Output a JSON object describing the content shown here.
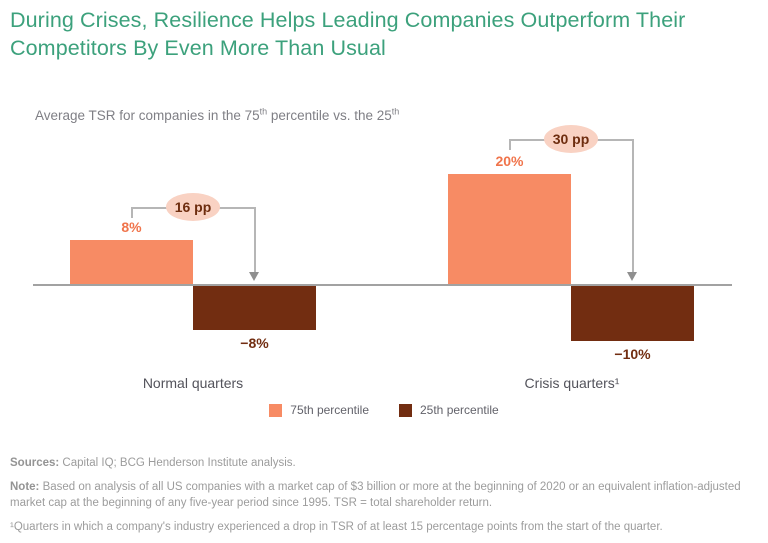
{
  "title": "During Crises, Resilience Helps Leading Companies Outperform Their Competitors By Even More Than Usual",
  "subtitle": {
    "part1": "Average TSR for companies in the 75",
    "sup1": "th",
    "part2": " percentile vs. the 25",
    "sup2": "th"
  },
  "chart_data": {
    "type": "bar",
    "title": "Average TSR for companies in the 75th percentile vs. the 25th",
    "unit": "% TSR",
    "categories": [
      "Normal quarters",
      "Crisis quarters¹"
    ],
    "series": [
      {
        "name": "75th percentile",
        "color": "#F78B64",
        "values": [
          8,
          20
        ]
      },
      {
        "name": "25th percentile",
        "color": "#722D11",
        "values": [
          -8,
          -10
        ]
      }
    ],
    "value_labels": [
      [
        "8%",
        "20%"
      ],
      [
        "−8%",
        "−10%"
      ]
    ],
    "gap_annotations": [
      {
        "category": "Normal quarters",
        "label": "16 pp",
        "value_pp": 16
      },
      {
        "category": "Crisis quarters",
        "label": "30 pp",
        "value_pp": 30
      }
    ],
    "baseline": 0,
    "ylim": [
      -12,
      22
    ],
    "grid": false,
    "legend_position": "bottom"
  },
  "legend": [
    {
      "label": "75th percentile",
      "color": "#F78B64"
    },
    {
      "label": "25th percentile",
      "color": "#722D11"
    }
  ],
  "category_sups": [
    "",
    "1"
  ],
  "category_plain": [
    "Normal quarters",
    "Crisis quarters"
  ],
  "footer": {
    "sources_label": "Sources:",
    "sources_text": " Capital IQ; BCG Henderson Institute analysis.",
    "note_label": "Note:",
    "note_text": " Based on analysis of all US companies with a market cap of $3 billion or more at the beginning of 2020 or an equivalent inflation-adjusted market cap at the beginning of any five-year period since 1995. TSR = total shareholder return.",
    "footnote": "¹Quarters in which a company's industry experienced a drop in TSR of at least 15 percentage points from the start of the quarter."
  },
  "colors": {
    "title_green": "#3CA17C",
    "bar_orange": "#F78B64",
    "bar_brown": "#722D11",
    "value_label_orange": "#F0744B",
    "badge_bg": "#F9D2C3",
    "badge_text": "#6E2D0F",
    "axis_gray": "#A2A2A2",
    "bracket_gray": "#B6B6B6",
    "footer_gray": "#9C9C9C"
  }
}
